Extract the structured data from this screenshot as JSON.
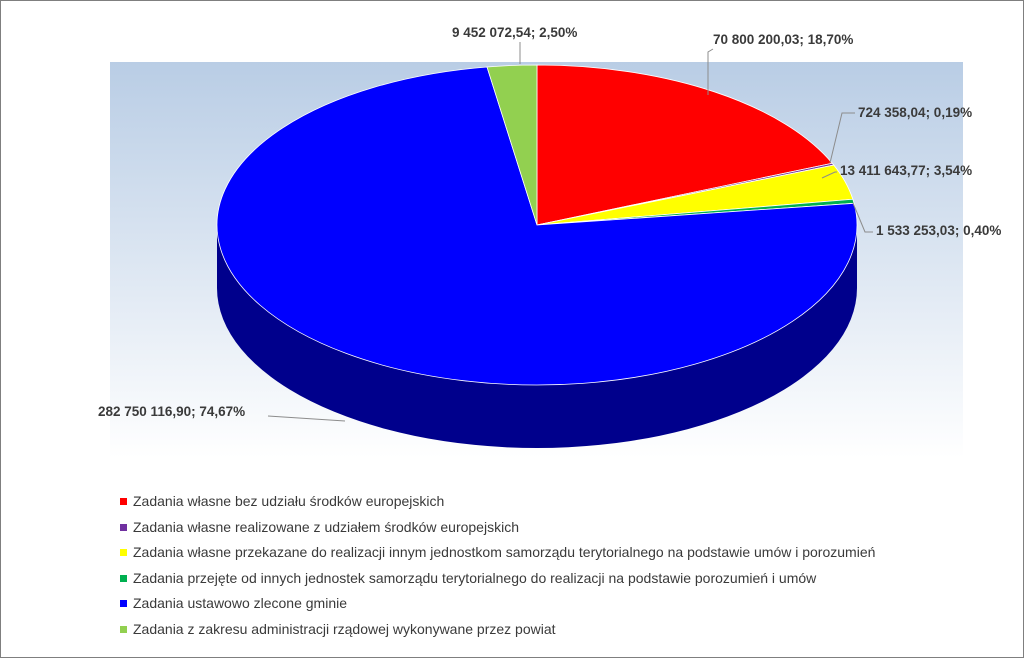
{
  "chart_data": {
    "type": "pie",
    "title": "",
    "categories": [
      "Zadania własne bez udziału środków europejskich",
      "Zadania własne realizowane z udziałem środków europejskich",
      "Zadania własne przekazane do realizacji innym jednostkom samorządu terytorialnego na podstawie umów i porozumień",
      "Zadania przejęte od innych jednostek samorządu terytorialnego do realizacji na podstawie porozumień i umów",
      "Zadania ustawowo zlecone gminie",
      "Zadania z zakresu administracji rządowej wykonywane przez powiat"
    ],
    "values": [
      70800200.03,
      724358.04,
      13411643.77,
      1533253.03,
      282750116.9,
      9452072.54
    ],
    "percents": [
      18.7,
      0.19,
      3.54,
      0.4,
      74.67,
      2.5
    ],
    "data_labels": [
      "70 800 200,03; 18,70%",
      "724 358,04; 0,19%",
      "13 411 643,77; 3,54%",
      "1 533 253,03; 0,40%",
      "282 750 116,90; 74,67%",
      "9 452 072,54; 2,50%"
    ],
    "colors": [
      "#ff0000",
      "#7030a0",
      "#ffff00",
      "#00b050",
      "#0000ff",
      "#92d050"
    ],
    "legend_position": "bottom",
    "style": "3d"
  }
}
